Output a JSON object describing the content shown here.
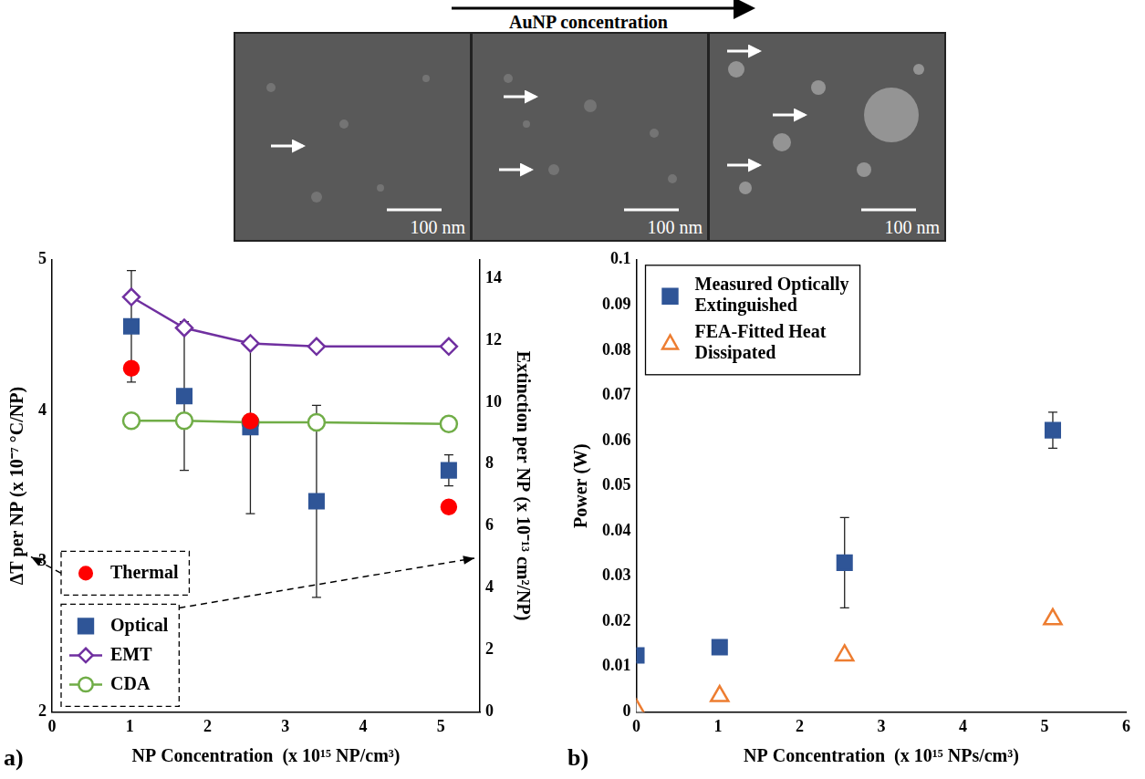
{
  "header": {
    "title": "AuNP concentration",
    "scale_bars": [
      "100 nm",
      "100 nm",
      "100 nm"
    ]
  },
  "chart_data": [
    {
      "type": "scatter",
      "panel": "a)",
      "x_label": "NP Concentration  (x 10¹⁵ NP/cm³)",
      "y_label": "ΔT per NP (x 10⁻⁷ °C/NP)",
      "y2_label": "Extinction per NP (x 10⁻¹³ cm²/NP)",
      "xlim": [
        0,
        5.5
      ],
      "xticks": [
        0,
        1,
        2,
        3,
        4,
        5
      ],
      "ylim": [
        2,
        5
      ],
      "yticks": [
        2,
        3,
        4,
        5
      ],
      "y2lim": [
        0,
        14.6
      ],
      "y2ticks": [
        0,
        2,
        4,
        6,
        8,
        10,
        12,
        14
      ],
      "grid": false,
      "legend": "lower left",
      "series": [
        {
          "name": "Thermal",
          "type": "scatter",
          "marker": "circle",
          "color": "#ff0000",
          "axis": "y",
          "x": [
            1.02,
            2.55,
            5.1
          ],
          "values": [
            4.28,
            3.93,
            3.36
          ]
        },
        {
          "name": "Optical",
          "type": "scatter",
          "marker": "square",
          "color": "#2f5597",
          "axis": "y2",
          "x": [
            1.02,
            1.7,
            2.55,
            3.4,
            5.1
          ],
          "values": [
            12.45,
            10.2,
            9.2,
            6.8,
            7.8
          ],
          "errors": [
            1.8,
            2.4,
            2.8,
            3.1,
            0.5
          ]
        },
        {
          "name": "EMT",
          "type": "line",
          "marker": "diamond-open",
          "line_style": "solid",
          "color": "#7030a0",
          "axis": "y2",
          "x": [
            1.02,
            1.7,
            2.55,
            3.4,
            5.1
          ],
          "values": [
            13.4,
            12.4,
            11.9,
            11.8,
            11.8
          ]
        },
        {
          "name": "CDA",
          "type": "line",
          "marker": "circle-open",
          "line_style": "solid",
          "color": "#70ad47",
          "axis": "y2",
          "x": [
            1.02,
            1.7,
            2.55,
            3.4,
            5.1
          ],
          "values": [
            9.4,
            9.4,
            9.35,
            9.35,
            9.3
          ]
        }
      ]
    },
    {
      "type": "scatter",
      "panel": "b)",
      "x_label": "NP Concentration  (x 10¹⁵ NPs/cm³)",
      "y_label": "Power (W)",
      "xlim": [
        0,
        6
      ],
      "xticks": [
        0,
        1,
        2,
        3,
        4,
        5,
        6
      ],
      "ylim": [
        0,
        0.1
      ],
      "yticks": [
        0,
        0.01,
        0.02,
        0.03,
        0.04,
        0.05,
        0.06,
        0.07,
        0.08,
        0.09,
        0.1
      ],
      "grid": false,
      "legend": "upper left",
      "series": [
        {
          "name": "Measured Optically Extinguished",
          "type": "scatter",
          "marker": "square",
          "color": "#2f5597",
          "axis": "y",
          "x": [
            0,
            1.02,
            2.55,
            5.1
          ],
          "values": [
            0.0125,
            0.0143,
            0.033,
            0.0623
          ],
          "errors": [
            null,
            null,
            0.01,
            0.004
          ]
        },
        {
          "name": "FEA-Fitted Heat Dissipated",
          "type": "scatter",
          "marker": "triangle-open",
          "color": "#ed7d31",
          "axis": "y",
          "x": [
            0,
            1.02,
            2.55,
            5.1
          ],
          "values": [
            0.0005,
            0.0035,
            0.0125,
            0.0205
          ]
        }
      ]
    }
  ]
}
